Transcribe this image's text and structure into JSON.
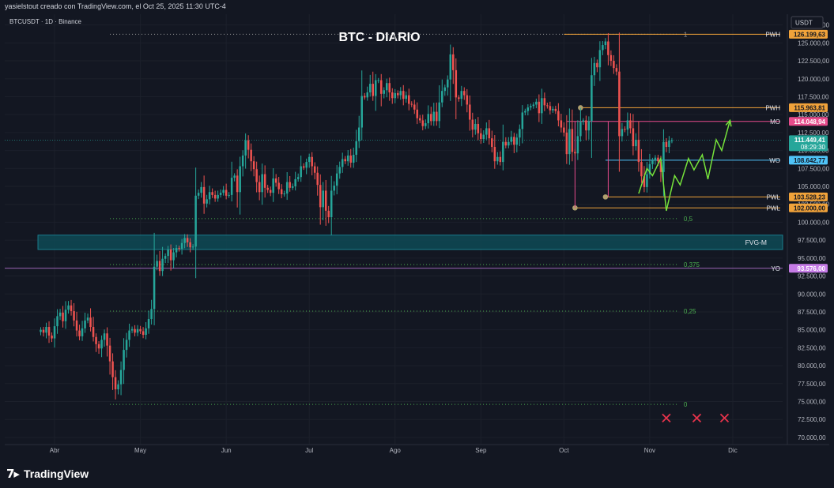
{
  "header": {
    "creator_line": "yasielstout creado con TradingView.com, el Oct 25, 2025 11:30 UTC-4"
  },
  "symbol_info": "BTCUSDT · 1D · Binance",
  "currency": "USDT",
  "brand": "TradingView",
  "chart_data": {
    "type": "candlestick",
    "title": "BTC - DIARIO",
    "ylim": [
      69000,
      129000
    ],
    "y_ticks": [
      70000,
      72500,
      75000,
      77500,
      80000,
      82500,
      85000,
      87500,
      90000,
      92500,
      95000,
      97500,
      100000,
      102500,
      105000,
      107500,
      110000,
      112500,
      115000,
      117500,
      120000,
      122500,
      125000,
      127500
    ],
    "y_tick_labels": [
      "70.000,00",
      "72.500,00",
      "75.000,00",
      "77.500,00",
      "80.000,00",
      "82.500,00",
      "85.000,00",
      "87.500,00",
      "90.000,00",
      "92.500,00",
      "95.000,00",
      "97.500,00",
      "100.000,00",
      "102.500,00",
      "105.000,00",
      "107.500,00",
      "110.000,00",
      "112.500,00",
      "115.000,00",
      "117.500,00",
      "120.000,00",
      "122.500,00",
      "125.000,00",
      "127.500,00"
    ],
    "x_ticks": [
      "Abr",
      "May",
      "Jun",
      "Jul",
      "Ago",
      "Sep",
      "Oct",
      "Nov",
      "Dic"
    ],
    "x_tick_index": [
      5,
      36,
      67,
      97,
      128,
      159,
      189,
      220,
      250
    ],
    "x_range": [
      -13,
      268
    ],
    "closes": [
      85000,
      84600,
      85400,
      84200,
      83800,
      85500,
      86900,
      87400,
      86200,
      87800,
      88400,
      87600,
      86300,
      84900,
      84100,
      85200,
      86300,
      86700,
      85400,
      84000,
      83000,
      82400,
      83600,
      84500,
      82800,
      80600,
      78400,
      76700,
      77400,
      79400,
      82200,
      83600,
      84900,
      85100,
      84600,
      85100,
      84800,
      84300,
      85200,
      86500,
      87900,
      93800,
      94600,
      93200,
      94900,
      95300,
      96200,
      94700,
      95800,
      96400,
      96300,
      97100,
      97800,
      97200,
      96500,
      96600,
      103700,
      104100,
      104900,
      102600,
      103200,
      104200,
      103800,
      103300,
      103800,
      104100,
      104500,
      103700,
      103800,
      106200,
      106500,
      104200,
      107800,
      109300,
      111400,
      110100,
      108500,
      107400,
      105600,
      104200,
      106700,
      104800,
      104500,
      104100,
      106100,
      105500,
      104600,
      103900,
      104000,
      105600,
      104800,
      105000,
      106000,
      106300,
      107800,
      107600,
      108400,
      109100,
      107800,
      106900,
      105200,
      102100,
      104400,
      101600,
      100700,
      104400,
      105100,
      106800,
      107700,
      108800,
      108500,
      109300,
      108300,
      109400,
      111300,
      113200,
      117600,
      117400,
      118100,
      119300,
      117600,
      119800,
      119800,
      117900,
      118400,
      119400,
      118100,
      117300,
      118000,
      117700,
      118300,
      117200,
      117700,
      116500,
      116400,
      115700,
      114500,
      114200,
      113400,
      113800,
      115100,
      114100,
      115400,
      114100,
      116700,
      118300,
      118800,
      119900,
      123400,
      121200,
      117400,
      117200,
      118300,
      117700,
      116400,
      114300,
      112900,
      113700,
      112400,
      111600,
      112200,
      113100,
      111700,
      110500,
      108500,
      109100,
      108400,
      111200,
      110700,
      111200,
      111900,
      110800,
      111800,
      113000,
      115300,
      115500,
      116000,
      116200,
      116400,
      116800,
      115200,
      117300,
      116300,
      116200,
      115600,
      115800,
      115500,
      114200,
      113200,
      112500,
      109500,
      113000,
      109800,
      109600,
      112000,
      114000,
      114200,
      112800,
      114100,
      120500,
      122200,
      121600,
      124000,
      124700,
      125200,
      123300,
      122500,
      121500,
      121000,
      112000,
      113000,
      112900,
      114200,
      113100,
      110600,
      111500,
      108400,
      106400,
      104900,
      106700,
      108100,
      108600,
      109000,
      108500,
      107000,
      111200,
      110500,
      111400,
      111400
    ],
    "annotations": {
      "pwh_top": {
        "label": "PWH",
        "value": 126199.63,
        "price_label": "126.199,63"
      },
      "pwh_2": {
        "label": "PWH",
        "value": 115963.81,
        "price_label": "115.963,81"
      },
      "mo": {
        "label": "MO",
        "value": 114048.94,
        "price_label": "114.048,94"
      },
      "current": {
        "value": 111449.41,
        "price_label": "111.449,41",
        "countdown": "08:29:30"
      },
      "wo": {
        "label": "WO",
        "value": 108642.77,
        "price_label": "108.642,77"
      },
      "pwl_1": {
        "label": "PWL",
        "value": 103528.23,
        "price_label": "103.528,23"
      },
      "pwl_2": {
        "label": "PWL",
        "value": 102000.0,
        "price_label": "102.000,00"
      },
      "yo": {
        "label": "YO",
        "value": 93576.0,
        "price_label": "93.576,00"
      },
      "fvg": {
        "label": "FVG-M",
        "low": 96200,
        "high": 98200
      },
      "fib": [
        {
          "label": "1",
          "value": 126199.63
        },
        {
          "label": "0,5",
          "value": 100500
        },
        {
          "label": "0,375",
          "value": 94100
        },
        {
          "label": "0,25",
          "value": 87600
        },
        {
          "label": "0",
          "value": 74600
        }
      ]
    },
    "projection": [
      [
        216,
        104000
      ],
      [
        219,
        107500
      ],
      [
        221,
        106500
      ],
      [
        224,
        108900
      ],
      [
        226,
        101600
      ],
      [
        229,
        106500
      ],
      [
        231,
        105200
      ],
      [
        234,
        108900
      ],
      [
        236,
        107300
      ],
      [
        239,
        109400
      ],
      [
        241,
        106000
      ],
      [
        244,
        111500
      ],
      [
        246,
        110000
      ],
      [
        249,
        114200
      ]
    ],
    "crosses_index": [
      226,
      237,
      247
    ],
    "crosses_value": 72700,
    "colors": {
      "up": "#26a69a",
      "down": "#ef5350",
      "projection": "#76e33b",
      "fvg": "#00bcd4",
      "pwh": "#f0a23a",
      "mo": "#e74c8c",
      "wo": "#4fc3f7",
      "yo": "#c57be6",
      "fib": "#4caf50"
    }
  }
}
